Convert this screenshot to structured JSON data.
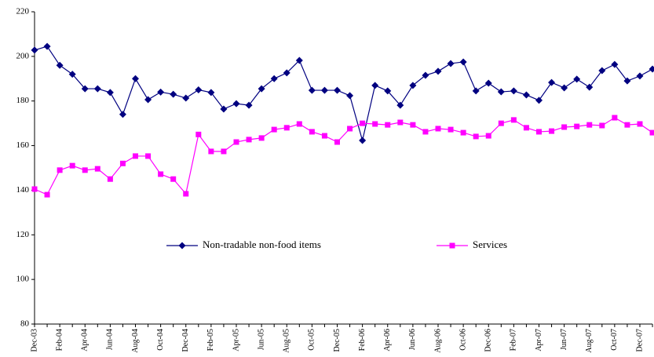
{
  "chart_data": {
    "type": "line",
    "categories": [
      "Dec-03",
      null,
      "Feb-04",
      null,
      "Apr-04",
      null,
      "Jun-04",
      null,
      "Aug-04",
      null,
      "Oct-04",
      null,
      "Dec-04",
      null,
      "Feb-05",
      null,
      "Apr-05",
      null,
      "Jun-05",
      null,
      "Aug-05",
      null,
      "Oct-05",
      null,
      "Dec-05",
      null,
      "Feb-06",
      null,
      "Apr-06",
      null,
      "Jun-06",
      null,
      "Aug-06",
      null,
      "Oct-06",
      null,
      "Dec-06",
      null,
      "Feb-07",
      null,
      "Apr-07",
      null,
      "Jun-07",
      null,
      "Aug-07",
      null,
      "Oct-07",
      null,
      "Dec-07",
      null
    ],
    "series": [
      {
        "name": "Non-tradable non-food items",
        "color": "#000080",
        "marker": "diamond",
        "values": [
          202.8,
          204.5,
          196,
          192,
          185.5,
          185.5,
          183.8,
          174,
          190,
          180.6,
          184,
          183,
          181.3,
          185,
          183.8,
          176.4,
          178.8,
          178.1,
          185.5,
          190,
          192.6,
          198.2,
          184.8,
          184.8,
          184.8,
          182.4,
          162.3,
          187,
          184.5,
          178.1,
          187,
          191.5,
          193.3,
          196.8,
          197.5,
          184.5,
          188,
          184.1,
          184.5,
          182.7,
          180.3,
          188.3,
          185.9,
          189.8,
          186.2,
          193.6,
          196.4,
          189,
          191.2,
          194.3
        ]
      },
      {
        "name": "Services",
        "color": "#ff00ff",
        "marker": "square",
        "values": [
          140.5,
          138,
          149,
          151,
          149,
          149.6,
          145,
          152,
          155.3,
          155.3,
          147.2,
          145,
          138.4,
          165,
          157.4,
          157.4,
          161.6,
          162.7,
          163.4,
          167.2,
          168,
          169.7,
          166.2,
          164.4,
          161.6,
          167.6,
          170,
          169.7,
          169.3,
          170.4,
          169.3,
          166.2,
          167.6,
          167.2,
          165.8,
          164.1,
          164.4,
          170,
          171.5,
          168,
          166.2,
          166.5,
          168.3,
          168.6,
          169.3,
          169,
          172.5,
          169.3,
          169.7,
          165.8
        ]
      }
    ],
    "ylim": [
      80,
      220
    ],
    "yticks": [
      80,
      100,
      120,
      140,
      160,
      180,
      200,
      220
    ],
    "grid": false,
    "legend": "center"
  }
}
